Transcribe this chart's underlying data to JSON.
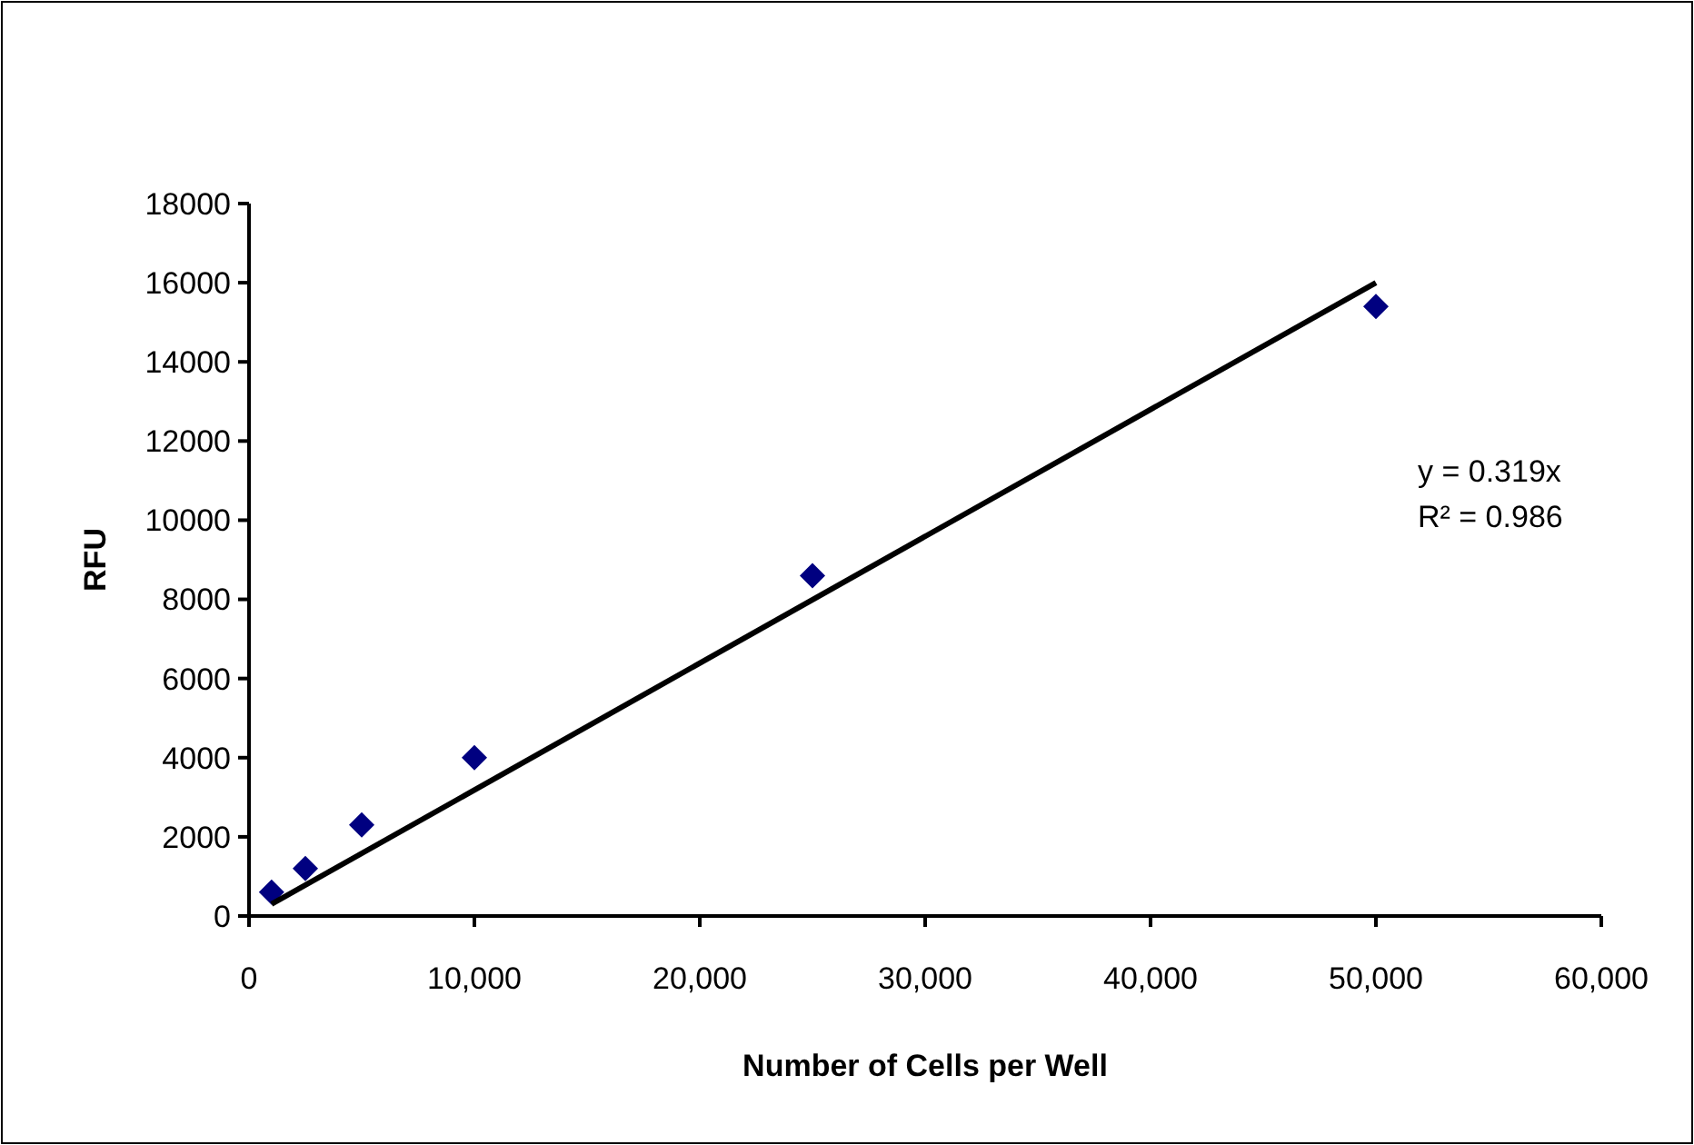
{
  "chart_data": {
    "type": "scatter",
    "xlabel": "Number of Cells per Well",
    "ylabel": "RFU",
    "xlim": [
      0,
      60000
    ],
    "xticks": [
      {
        "value": 0,
        "label": "0"
      },
      {
        "value": 10000,
        "label": "10,000"
      },
      {
        "value": 20000,
        "label": "20,000"
      },
      {
        "value": 30000,
        "label": "30,000"
      },
      {
        "value": 40000,
        "label": "40,000"
      },
      {
        "value": 50000,
        "label": "50,000"
      },
      {
        "value": 60000,
        "label": "60,000"
      }
    ],
    "ylim": [
      0,
      18000
    ],
    "yticks": [
      0,
      2000,
      4000,
      6000,
      8000,
      10000,
      12000,
      14000,
      16000,
      18000
    ],
    "grid": false,
    "series": [
      {
        "marker": "diamond",
        "color": "#000080",
        "x": [
          1000,
          2500,
          5000,
          10000,
          25000,
          50000
        ],
        "values": [
          600,
          1200,
          2300,
          4000,
          8600,
          15400
        ]
      },
      {
        "type": "line",
        "color": "#000000",
        "line_style": "solid",
        "x": [
          1000,
          50000
        ],
        "values": [
          300,
          16000
        ]
      }
    ],
    "annotations": [
      "y = 0.319x",
      "R² = 0.986"
    ]
  }
}
